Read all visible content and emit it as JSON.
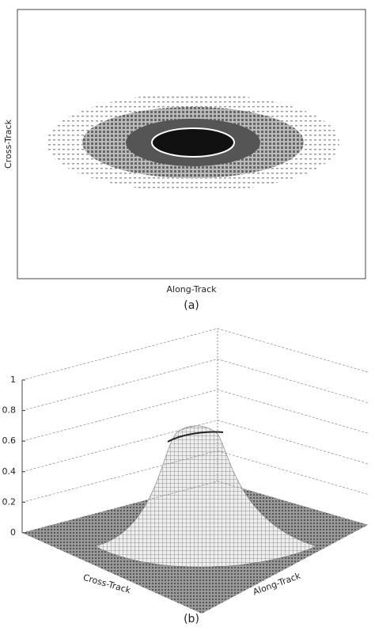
{
  "panel_a": {
    "x_label": "Along-Track",
    "y_label": "Cross-Track",
    "caption": "(a)"
  },
  "panel_b": {
    "zlim": [
      0,
      1
    ],
    "zticks": [
      0,
      0.2,
      0.4,
      0.6,
      0.8,
      1
    ],
    "x_label": "Along-Track",
    "y_label": "Cross-Track",
    "caption": "(b)"
  }
}
